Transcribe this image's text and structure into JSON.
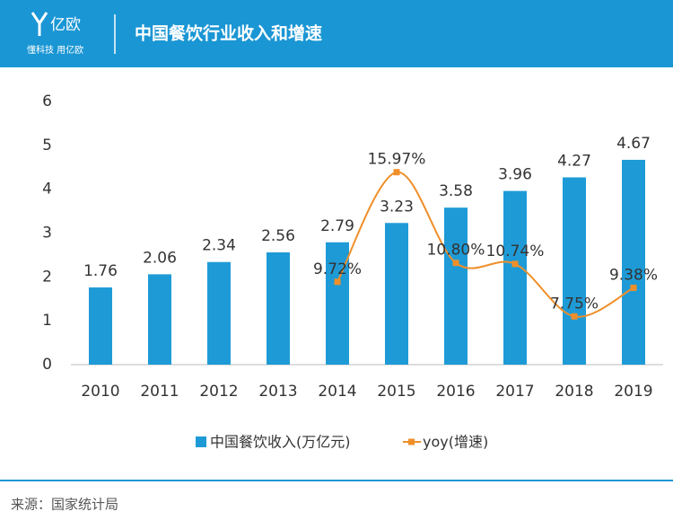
{
  "header": {
    "logo": "亿欧",
    "slogan": "懂科技 用亿欧"
  },
  "chart_data": {
    "type": "bar_line",
    "title": "中国餐饮行业收入和增速",
    "categories": [
      "2010",
      "2011",
      "2012",
      "2013",
      "2014",
      "2015",
      "2016",
      "2017",
      "2018",
      "2019"
    ],
    "series": [
      {
        "name": "中国餐饮收入(万亿元)",
        "type": "bar",
        "color": "#1e9bd7",
        "values": [
          1.76,
          2.06,
          2.34,
          2.56,
          2.79,
          3.23,
          3.58,
          3.96,
          4.27,
          4.67
        ]
      },
      {
        "name": "yoy(增速)",
        "type": "line",
        "axis": "y2",
        "color": "#ef8f2a",
        "smooth": true,
        "values": [
          null,
          null,
          null,
          null,
          9.72,
          15.97,
          10.8,
          10.74,
          7.75,
          9.38
        ],
        "value_labels": [
          null,
          null,
          null,
          null,
          "9.72%",
          "15.97%",
          "10.80%",
          "10.74%",
          "7.75%",
          "9.38%"
        ]
      }
    ],
    "ylim": [
      0,
      6
    ],
    "yticks": [
      0,
      1,
      2,
      3,
      4,
      5,
      6
    ],
    "y2lim": [
      5,
      20
    ],
    "legend": "bottom"
  },
  "footer": {
    "source": "来源：国家统计局"
  }
}
